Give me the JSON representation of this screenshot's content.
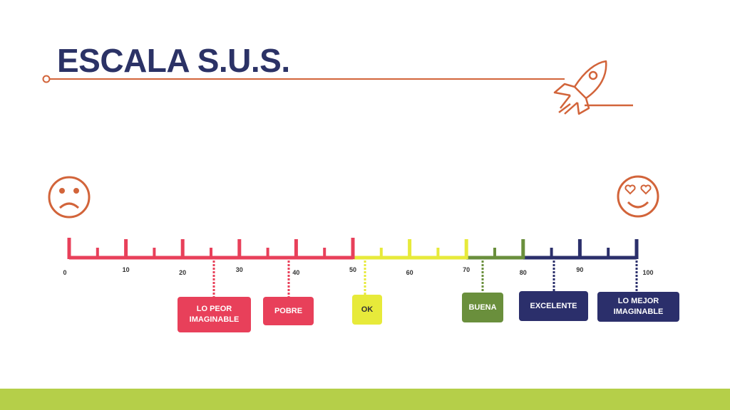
{
  "title": "ESCALA S.U.S.",
  "scale": {
    "ticks": [
      0,
      10,
      20,
      30,
      40,
      50,
      60,
      70,
      80,
      90,
      100
    ]
  },
  "labels": [
    {
      "text": "LO PEOR IMAGINABLE"
    },
    {
      "text": "POBRE"
    },
    {
      "text": "OK"
    },
    {
      "text": "BUENA"
    },
    {
      "text": "EXCELENTE"
    },
    {
      "text": "LO MEJOR IMAGINABLE"
    }
  ]
}
